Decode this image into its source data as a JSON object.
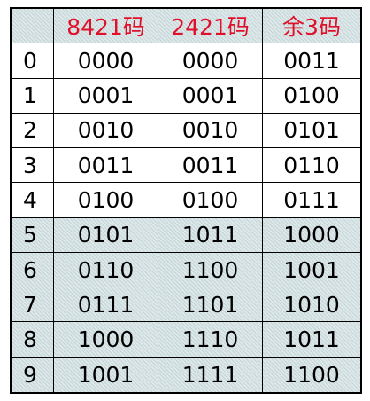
{
  "header": {
    "index": "",
    "col1": "8421码",
    "col2": "2421码",
    "col3": "余3码"
  },
  "rows": [
    {
      "digit": "0",
      "bcd8421": "0000",
      "bcd2421": "0000",
      "excess3": "0011"
    },
    {
      "digit": "1",
      "bcd8421": "0001",
      "bcd2421": "0001",
      "excess3": "0100"
    },
    {
      "digit": "2",
      "bcd8421": "0010",
      "bcd2421": "0010",
      "excess3": "0101"
    },
    {
      "digit": "3",
      "bcd8421": "0011",
      "bcd2421": "0011",
      "excess3": "0110"
    },
    {
      "digit": "4",
      "bcd8421": "0100",
      "bcd2421": "0100",
      "excess3": "0111"
    },
    {
      "digit": "5",
      "bcd8421": "0101",
      "bcd2421": "1011",
      "excess3": "1000"
    },
    {
      "digit": "6",
      "bcd8421": "0110",
      "bcd2421": "1100",
      "excess3": "1001"
    },
    {
      "digit": "7",
      "bcd8421": "0111",
      "bcd2421": "1101",
      "excess3": "1010"
    },
    {
      "digit": "8",
      "bcd8421": "1000",
      "bcd2421": "1110",
      "excess3": "1011"
    },
    {
      "digit": "9",
      "bcd8421": "1001",
      "bcd2421": "1111",
      "excess3": "1100"
    }
  ],
  "colors": {
    "header_text": "#e0102a",
    "hatched_background": "#dce8ea",
    "border": "#000000"
  }
}
